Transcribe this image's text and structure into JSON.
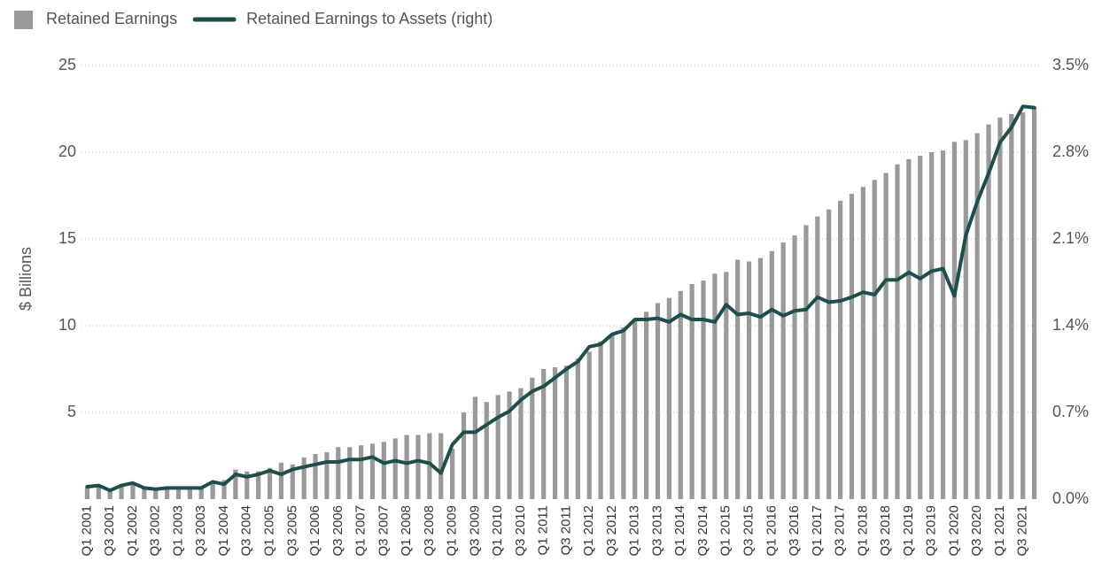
{
  "chart_data": {
    "type": "bar",
    "y_label": "$ Billions",
    "categories": [
      "Q1 2001",
      null,
      "Q3 2001",
      null,
      "Q1 2002",
      null,
      "Q3 2002",
      null,
      "Q1 2003",
      null,
      "Q3 2003",
      null,
      "Q1 2004",
      null,
      "Q3 2004",
      null,
      "Q1 2005",
      null,
      "Q3 2005",
      null,
      "Q1 2006",
      null,
      "Q3 2006",
      null,
      "Q1 2007",
      null,
      "Q3 2007",
      null,
      "Q1 2008",
      null,
      "Q3 2008",
      null,
      "Q1 2009",
      null,
      "Q3 2009",
      null,
      "Q1 2010",
      null,
      "Q3 2010",
      null,
      "Q1 2011",
      null,
      "Q3 2011",
      null,
      "Q1 2012",
      null,
      "Q3 2012",
      null,
      "Q1 2013",
      null,
      "Q3 2013",
      null,
      "Q1 2014",
      null,
      "Q3 2014",
      null,
      "Q1 2015",
      null,
      "Q3 2015",
      null,
      "Q1 2016",
      null,
      "Q3 2016",
      null,
      "Q1 2017",
      null,
      "Q3 2017",
      null,
      "Q1 2018",
      null,
      "Q3 2018",
      null,
      "Q1 2019",
      null,
      "Q3 2019",
      null,
      "Q1 2020",
      null,
      "Q3 2020",
      null,
      "Q1 2021",
      null,
      "Q3 2021",
      null
    ],
    "series": [
      {
        "name": "Retained Earnings",
        "type": "bar",
        "color": "#999999",
        "values": [
          0.7,
          0.8,
          0.5,
          0.8,
          0.9,
          0.6,
          0.5,
          0.6,
          0.6,
          0.7,
          0.7,
          1.0,
          1.1,
          1.7,
          1.6,
          1.6,
          1.8,
          2.1,
          2.0,
          2.4,
          2.6,
          2.7,
          3.0,
          3.0,
          3.1,
          3.2,
          3.3,
          3.5,
          3.7,
          3.7,
          3.8,
          3.8,
          2.9,
          5.0,
          5.9,
          5.6,
          6.0,
          6.2,
          6.4,
          7.0,
          7.5,
          7.6,
          7.7,
          8.1,
          8.5,
          9.1,
          9.5,
          9.9,
          10.4,
          10.8,
          11.3,
          11.6,
          12.0,
          12.4,
          12.6,
          13.0,
          13.1,
          13.8,
          13.7,
          13.9,
          14.3,
          14.8,
          15.2,
          15.8,
          16.3,
          16.7,
          17.2,
          17.6,
          18.0,
          18.4,
          18.8,
          19.3,
          19.6,
          19.8,
          20.0,
          20.1,
          20.6,
          20.7,
          21.1,
          21.6,
          22.0,
          22.2,
          22.3,
          22.6
        ]
      },
      {
        "name": "Retained Earnings to Assets (right)",
        "type": "line",
        "axis": "y2",
        "color": "#1d4e4b",
        "values": [
          0.1,
          0.11,
          0.07,
          0.11,
          0.13,
          0.09,
          0.08,
          0.09,
          0.09,
          0.09,
          0.09,
          0.14,
          0.12,
          0.2,
          0.18,
          0.2,
          0.23,
          0.2,
          0.24,
          0.26,
          0.28,
          0.3,
          0.3,
          0.32,
          0.32,
          0.34,
          0.29,
          0.31,
          0.29,
          0.31,
          0.29,
          0.21,
          0.44,
          0.54,
          0.54,
          0.6,
          0.66,
          0.71,
          0.8,
          0.87,
          0.91,
          0.98,
          1.05,
          1.11,
          1.23,
          1.25,
          1.33,
          1.36,
          1.45,
          1.45,
          1.46,
          1.43,
          1.49,
          1.45,
          1.45,
          1.43,
          1.57,
          1.49,
          1.5,
          1.47,
          1.53,
          1.48,
          1.52,
          1.53,
          1.63,
          1.59,
          1.6,
          1.63,
          1.67,
          1.65,
          1.77,
          1.77,
          1.83,
          1.78,
          1.84,
          1.86,
          1.64,
          2.13,
          2.4,
          2.63,
          2.88,
          3.0,
          3.17,
          3.16
        ]
      }
    ],
    "ylim": [
      0,
      25
    ],
    "yticks": [
      5,
      10,
      15,
      20,
      25
    ],
    "y2lim": [
      0,
      3.5
    ],
    "y2ticks": [
      {
        "value": 0,
        "label": "0.0%"
      },
      {
        "value": 0.7,
        "label": "0.7%"
      },
      {
        "value": 1.4,
        "label": "1.4%"
      },
      {
        "value": 2.1,
        "label": "2.1%"
      },
      {
        "value": 2.8,
        "label": "2.8%"
      },
      {
        "value": 3.5,
        "label": "3.5%"
      }
    ],
    "grid": true
  }
}
